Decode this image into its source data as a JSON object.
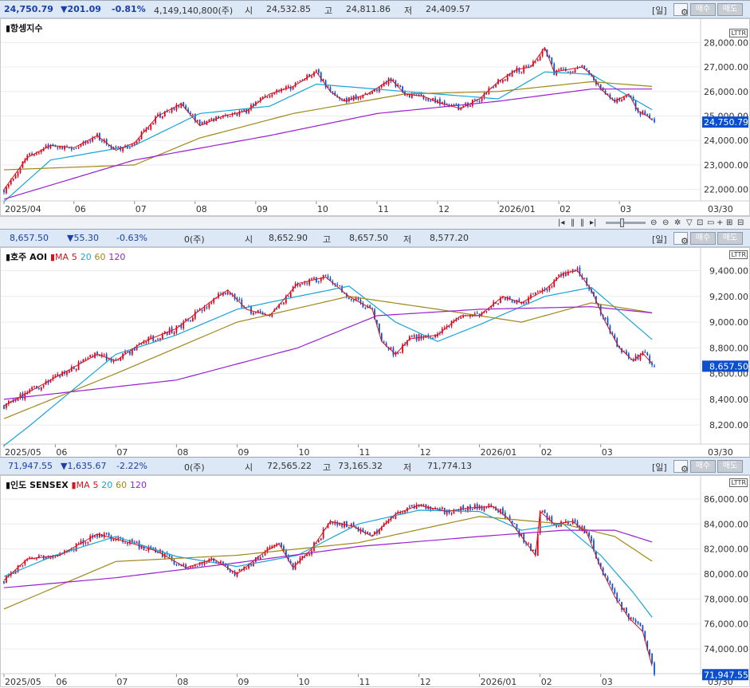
{
  "colors": {
    "up": "#e0001c",
    "down": "#0b4fd0",
    "ma5": "#d2141e",
    "ma20": "#19a4d8",
    "ma60": "#a2861a",
    "ma120": "#9a1fd0",
    "infobar": "#dce8f5"
  },
  "toolbar": {
    "period_label": "[일]",
    "gear": "gear-icon",
    "buy_label": "매수",
    "sell_label": "매도"
  },
  "scroll_controls": {
    "icons": [
      "first-icon",
      "pause-icon",
      "pause-icon",
      "last-icon",
      "zoom-out-icon",
      "zoom-in-icon",
      "gear-icon",
      "filter-icon",
      "zoom-icon",
      "split-icon",
      "add-icon",
      "grid-icon",
      "fit-icon"
    ]
  },
  "panels": [
    {
      "info": {
        "price": "24,750.79",
        "change": "▼201.09",
        "change_pct": "-0.81%",
        "volume": "4,149,140,800(주)",
        "open_label": "시",
        "open": "24,532.85",
        "high_label": "고",
        "high": "24,811.86",
        "low_label": "저",
        "low": "24,409.57"
      },
      "legend": {
        "name": "▮항셍지수",
        "ma_label": "",
        "ma5": "",
        "ma20": "",
        "ma60": "",
        "ma120": ""
      },
      "badge": "LTTR",
      "last_price_label": "24,750.79",
      "date_label": "03/30"
    },
    {
      "info": {
        "price": "8,657.50",
        "change": "▼55.30",
        "change_pct": "-0.63%",
        "volume": "0(주)",
        "open_label": "시",
        "open": "8,652.90",
        "high_label": "고",
        "high": "8,657.50",
        "low_label": "저",
        "low": "8,577.20"
      },
      "legend": {
        "name": "▮호주 AOI",
        "ma_label": "▮MA",
        "ma5": "5",
        "ma20": "20",
        "ma60": "60",
        "ma120": "120"
      },
      "badge": "LTTR",
      "last_price_label": "8,657.50",
      "date_label": "03/30"
    },
    {
      "info": {
        "price": "71,947.55",
        "change": "▼1,635.67",
        "change_pct": "-2.22%",
        "volume": "0(주)",
        "open_label": "시",
        "open": "72,565.22",
        "high_label": "고",
        "high": "73,165.32",
        "low_label": "저",
        "low": "71,774.13"
      },
      "legend": {
        "name": "▮인도 SENSEX",
        "ma_label": "▮MA",
        "ma5": "5",
        "ma20": "20",
        "ma60": "60",
        "ma120": "120"
      },
      "badge": "LTTR",
      "last_price_label": "71,947.55",
      "date_label": "03/30"
    }
  ],
  "chart_data": [
    {
      "type": "candlestick",
      "title": "항셍지수",
      "ylim": [
        21400,
        28500
      ],
      "yticks": [
        22000,
        23000,
        24000,
        25000,
        26000,
        27000,
        28000
      ],
      "ytick_labels": [
        "22,000.00",
        "23,000.00",
        "24,000.00",
        "25,000.00",
        "26,000.00",
        "27,000.00",
        "28,000.00"
      ],
      "xtick_labels": [
        "2025/04",
        "06",
        "07",
        "08",
        "09",
        "10",
        "11",
        "12",
        "2026/01",
        "02",
        "03"
      ],
      "xtick_index": [
        0,
        30,
        56,
        82,
        108,
        134,
        160,
        186,
        212,
        238,
        264
      ],
      "n": 280,
      "last": 24750.79,
      "close_anchors": [
        [
          0,
          22000
        ],
        [
          10,
          23300
        ],
        [
          20,
          23800
        ],
        [
          30,
          23700
        ],
        [
          40,
          24200
        ],
        [
          48,
          23600
        ],
        [
          56,
          23900
        ],
        [
          66,
          25000
        ],
        [
          76,
          25500
        ],
        [
          84,
          24600
        ],
        [
          94,
          25000
        ],
        [
          104,
          25200
        ],
        [
          114,
          25900
        ],
        [
          124,
          26200
        ],
        [
          134,
          26800
        ],
        [
          140,
          26000
        ],
        [
          146,
          25600
        ],
        [
          156,
          25900
        ],
        [
          166,
          26500
        ],
        [
          172,
          25900
        ],
        [
          180,
          25800
        ],
        [
          188,
          25500
        ],
        [
          196,
          25300
        ],
        [
          204,
          25700
        ],
        [
          212,
          26400
        ],
        [
          220,
          26900
        ],
        [
          226,
          27000
        ],
        [
          232,
          27800
        ],
        [
          236,
          26800
        ],
        [
          242,
          26900
        ],
        [
          248,
          27000
        ],
        [
          252,
          26700
        ],
        [
          256,
          26100
        ],
        [
          262,
          25600
        ],
        [
          268,
          25900
        ],
        [
          272,
          25200
        ],
        [
          276,
          25000
        ],
        [
          279,
          24750
        ]
      ],
      "ma": {
        "ma20": [
          [
            0,
            21500
          ],
          [
            20,
            23200
          ],
          [
            56,
            23800
          ],
          [
            84,
            25100
          ],
          [
            114,
            25400
          ],
          [
            134,
            26300
          ],
          [
            172,
            26000
          ],
          [
            212,
            25700
          ],
          [
            232,
            26800
          ],
          [
            252,
            26700
          ],
          [
            279,
            25200
          ]
        ],
        "ma60": [
          [
            0,
            22800
          ],
          [
            56,
            23000
          ],
          [
            84,
            24100
          ],
          [
            124,
            25100
          ],
          [
            172,
            25900
          ],
          [
            212,
            26000
          ],
          [
            252,
            26400
          ],
          [
            279,
            26200
          ]
        ],
        "ma120": [
          [
            0,
            21600
          ],
          [
            56,
            23200
          ],
          [
            114,
            24200
          ],
          [
            160,
            25100
          ],
          [
            212,
            25600
          ],
          [
            252,
            26100
          ],
          [
            279,
            26100
          ]
        ]
      }
    },
    {
      "type": "candlestick",
      "title": "호주 AOI",
      "ylim": [
        8040,
        9490
      ],
      "yticks": [
        8200,
        8400,
        8600,
        8800,
        9000,
        9200,
        9400
      ],
      "ytick_labels": [
        "8,200.00",
        "8,400.00",
        "8,600.00",
        "8,800.00",
        "9,000.00",
        "9,200.00",
        "9,400.00"
      ],
      "xtick_labels": [
        "2025/05",
        "06",
        "07",
        "08",
        "09",
        "10",
        "11",
        "12",
        "2026/01",
        "02",
        "03"
      ],
      "xtick_index": [
        0,
        22,
        48,
        74,
        100,
        126,
        152,
        178,
        204,
        230,
        256
      ],
      "n": 280,
      "last": 8657.5,
      "close_anchors": [
        [
          0,
          8350
        ],
        [
          20,
          8550
        ],
        [
          40,
          8750
        ],
        [
          48,
          8700
        ],
        [
          60,
          8850
        ],
        [
          74,
          8950
        ],
        [
          88,
          9150
        ],
        [
          96,
          9250
        ],
        [
          104,
          9100
        ],
        [
          114,
          9050
        ],
        [
          126,
          9300
        ],
        [
          138,
          9350
        ],
        [
          148,
          9200
        ],
        [
          158,
          9100
        ],
        [
          162,
          8850
        ],
        [
          168,
          8750
        ],
        [
          174,
          8870
        ],
        [
          186,
          8900
        ],
        [
          196,
          9050
        ],
        [
          204,
          9050
        ],
        [
          214,
          9200
        ],
        [
          222,
          9150
        ],
        [
          232,
          9250
        ],
        [
          240,
          9380
        ],
        [
          246,
          9400
        ],
        [
          252,
          9250
        ],
        [
          258,
          9000
        ],
        [
          264,
          8800
        ],
        [
          270,
          8700
        ],
        [
          274,
          8760
        ],
        [
          279,
          8657.5
        ]
      ],
      "ma": {
        "ma20": [
          [
            0,
            8040
          ],
          [
            10,
            8180
          ],
          [
            48,
            8750
          ],
          [
            74,
            8900
          ],
          [
            100,
            9100
          ],
          [
            126,
            9200
          ],
          [
            148,
            9280
          ],
          [
            168,
            9000
          ],
          [
            186,
            8850
          ],
          [
            204,
            8980
          ],
          [
            232,
            9200
          ],
          [
            252,
            9270
          ],
          [
            279,
            8850
          ]
        ],
        "ma60": [
          [
            0,
            8250
          ],
          [
            48,
            8600
          ],
          [
            100,
            9000
          ],
          [
            148,
            9200
          ],
          [
            186,
            9100
          ],
          [
            222,
            9000
          ],
          [
            252,
            9150
          ],
          [
            279,
            9070
          ]
        ],
        "ma120": [
          [
            0,
            8400
          ],
          [
            74,
            8550
          ],
          [
            126,
            8800
          ],
          [
            160,
            9050
          ],
          [
            204,
            9100
          ],
          [
            252,
            9120
          ],
          [
            279,
            9070
          ]
        ]
      }
    },
    {
      "type": "candlestick",
      "title": "인도 SENSEX",
      "ylim": [
        71900,
        86950
      ],
      "yticks": [
        74000,
        76000,
        78000,
        80000,
        82000,
        84000,
        86000
      ],
      "ytick_labels": [
        "74,000.00",
        "76,000.00",
        "78,000.00",
        "80,000.00",
        "82,000.00",
        "84,000.00",
        "86,000.00"
      ],
      "xtick_labels": [
        "2025/05",
        "06",
        "07",
        "08",
        "09",
        "10",
        "11",
        "12",
        "2026/01",
        "02",
        "03"
      ],
      "xtick_index": [
        0,
        22,
        48,
        74,
        100,
        126,
        152,
        178,
        204,
        230,
        256
      ],
      "n": 280,
      "last": 71947.55,
      "close_anchors": [
        [
          0,
          79500
        ],
        [
          10,
          81200
        ],
        [
          24,
          81500
        ],
        [
          40,
          83200
        ],
        [
          54,
          82500
        ],
        [
          66,
          81800
        ],
        [
          78,
          80500
        ],
        [
          90,
          81200
        ],
        [
          100,
          80000
        ],
        [
          112,
          81800
        ],
        [
          118,
          82400
        ],
        [
          124,
          80500
        ],
        [
          132,
          82000
        ],
        [
          140,
          84200
        ],
        [
          150,
          83800
        ],
        [
          158,
          83000
        ],
        [
          168,
          84800
        ],
        [
          178,
          85500
        ],
        [
          190,
          85000
        ],
        [
          200,
          85300
        ],
        [
          210,
          85400
        ],
        [
          216,
          84500
        ],
        [
          222,
          83000
        ],
        [
          228,
          81500
        ],
        [
          230,
          85000
        ],
        [
          236,
          84000
        ],
        [
          244,
          84200
        ],
        [
          250,
          83300
        ],
        [
          256,
          80500
        ],
        [
          262,
          78200
        ],
        [
          268,
          76500
        ],
        [
          274,
          75400
        ],
        [
          279,
          71947.55
        ]
      ],
      "ma": {
        "ma20": [
          [
            0,
            79800
          ],
          [
            22,
            81500
          ],
          [
            48,
            83000
          ],
          [
            74,
            81400
          ],
          [
            100,
            80600
          ],
          [
            126,
            81500
          ],
          [
            152,
            84000
          ],
          [
            178,
            85100
          ],
          [
            204,
            85000
          ],
          [
            222,
            83500
          ],
          [
            240,
            84000
          ],
          [
            256,
            81500
          ],
          [
            270,
            78500
          ],
          [
            279,
            76300
          ]
        ],
        "ma60": [
          [
            0,
            77200
          ],
          [
            48,
            81000
          ],
          [
            100,
            81500
          ],
          [
            152,
            82500
          ],
          [
            204,
            84600
          ],
          [
            240,
            84000
          ],
          [
            262,
            83000
          ],
          [
            279,
            80900
          ]
        ],
        "ma120": [
          [
            0,
            78900
          ],
          [
            48,
            79700
          ],
          [
            100,
            80900
          ],
          [
            152,
            82200
          ],
          [
            204,
            83000
          ],
          [
            240,
            83500
          ],
          [
            262,
            83500
          ],
          [
            279,
            82500
          ]
        ]
      }
    }
  ]
}
